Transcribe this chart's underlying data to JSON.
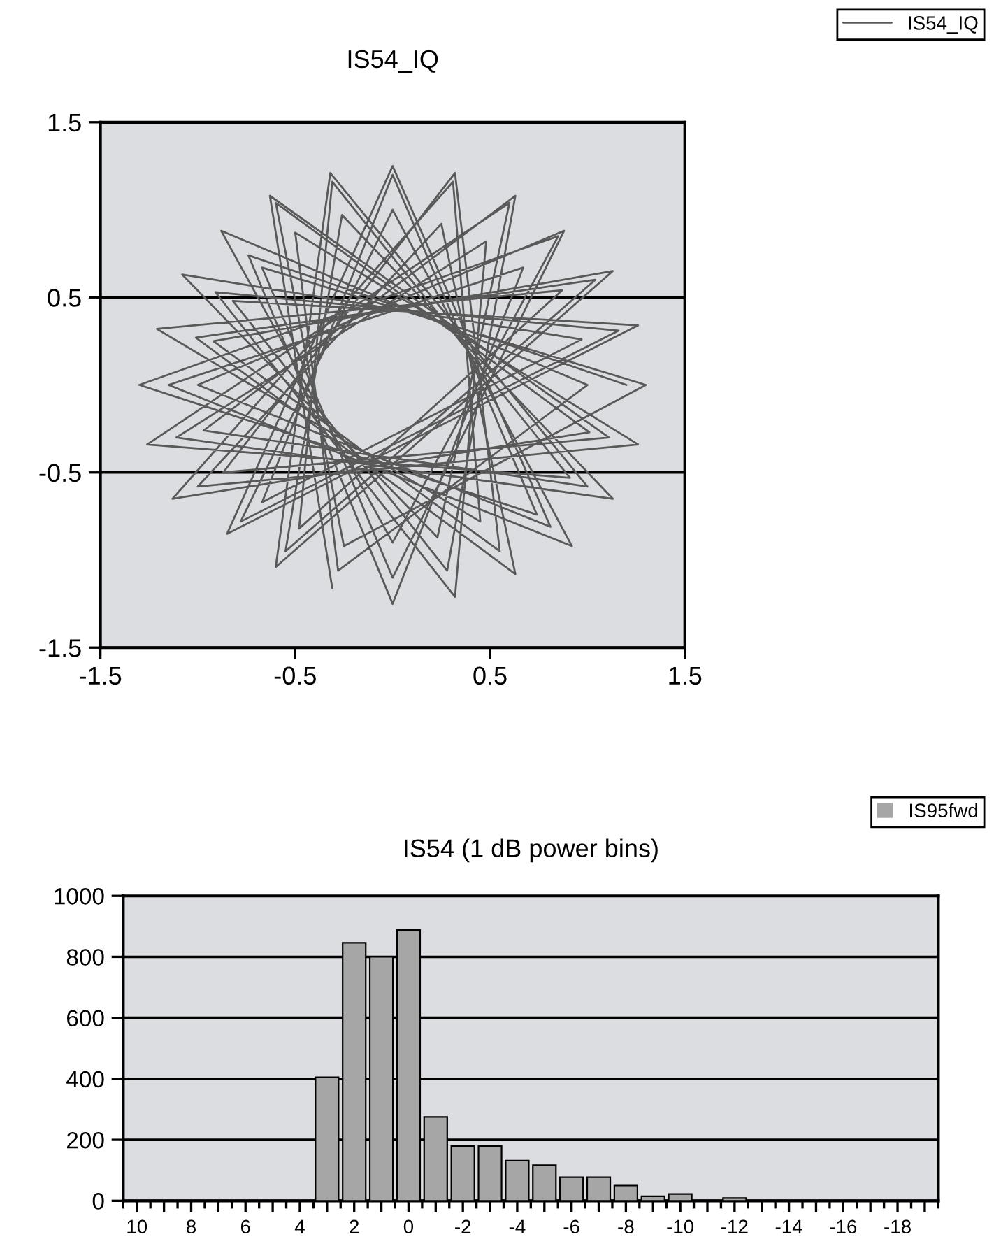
{
  "chart_data": [
    {
      "type": "line",
      "title": "IS54_IQ",
      "xlim": [
        -1.5,
        1.5
      ],
      "ylim": [
        -1.5,
        1.5
      ],
      "xticks": [
        -1.5,
        -0.5,
        0.5,
        1.5
      ],
      "yticks": [
        -1.5,
        -0.5,
        0.5,
        1.5
      ],
      "grid": "y",
      "legend": "top right",
      "marker": "none",
      "line_style": "solid",
      "series": [
        {
          "name": "IS54_IQ",
          "color": "#595959",
          "x": [
            1.2,
            -0.74,
            0,
            0.67,
            -1.15,
            0.92,
            0,
            -0.78,
            1.16,
            -0.91,
            0.32,
            0.48,
            -1.11,
            1.13,
            -0.26,
            -0.55,
            1.04,
            -1.01,
            0.63,
            0.25,
            -1.0,
            1.26,
            -0.5,
            -0.28,
            1.0,
            -0.88,
            0,
            0.85,
            -1.3,
            0.74,
            0,
            -0.67,
            0.97,
            -1.08,
            0.23,
            0.6,
            -1.26,
            0.91,
            -0.31,
            -0.48,
            0.87,
            -1.21,
            0.45,
            0.31,
            -1.13,
            1.01,
            -0.6,
            -0.25,
            1.3,
            -0.67,
            0,
            0.88,
            -1.0,
            0.81,
            0,
            -0.85,
            1.26,
            -0.82,
            0.28,
            0.63,
            -0.97,
            1.0,
            -0.32,
            -0.6,
            1.13,
            -0.92,
            0.55,
            0.32,
            -0.87,
            1.11,
            -0.63,
            -0.31
          ],
          "values": [
            0,
            0.74,
            -1.25,
            0.67,
            0,
            -0.92,
            1.0,
            -0.78,
            0.31,
            0.53,
            -1.21,
            0.82,
            -0.3,
            -0.65,
            0.97,
            -0.95,
            0.6,
            0.27,
            -1.08,
            0.92,
            -0.58,
            -0.34,
            0.87,
            -1.06,
            0,
            0.88,
            -0.9,
            0.85,
            0,
            -0.74,
            1.2,
            -0.67,
            0.26,
            0.63,
            -0.87,
            1.04,
            -0.34,
            -0.53,
            1.16,
            -0.82,
            0.54,
            0.32,
            -0.78,
            1.16,
            -0.65,
            -0.27,
            1.04,
            -0.92,
            0,
            0.67,
            -1.1,
            0.88,
            0,
            -0.81,
            1.25,
            -0.85,
            0.34,
            0.48,
            -1.06,
            1.08,
            -0.26,
            -0.58,
            1.21,
            -1.04,
            0.65,
            0.25,
            -0.95,
            1.21,
            -0.5,
            -0.3,
            1.08,
            -1.16
          ]
        }
      ]
    },
    {
      "type": "bar",
      "title": "IS54 (1 dB power bins)",
      "ylim": [
        0,
        1000
      ],
      "yticks": [
        0,
        200,
        400,
        600,
        800,
        1000
      ],
      "grid": "y",
      "legend": "top right",
      "categories": [
        "10",
        null,
        "8",
        null,
        "6",
        null,
        "4",
        null,
        "2",
        null,
        "0",
        null,
        "-2",
        null,
        "-4",
        null,
        "-6",
        null,
        "-8",
        null,
        "-10",
        null,
        "-12",
        null,
        "-14",
        null,
        "-16",
        null,
        "-18",
        null
      ],
      "series": [
        {
          "name": "IS95fwd",
          "color": "#a6a6a6",
          "values": [
            0,
            0,
            0,
            0,
            0,
            0,
            0,
            405,
            846,
            800,
            888,
            275,
            180,
            180,
            132,
            117,
            77,
            77,
            50,
            15,
            22,
            0,
            9,
            0,
            0,
            0,
            0,
            0,
            0,
            0
          ]
        }
      ]
    }
  ]
}
